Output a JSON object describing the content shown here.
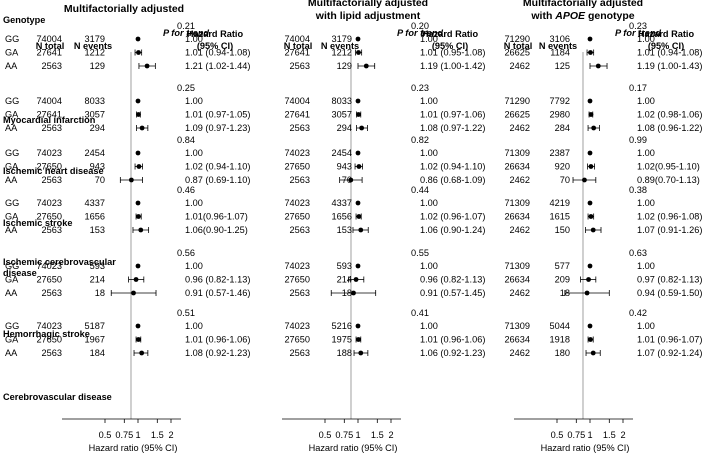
{
  "chart_data": {
    "type": "forest",
    "xlabel": "Hazard ratio (95% CI)",
    "x_ticks": [
      "0.5",
      "0.75",
      "1",
      "1.5",
      "2"
    ],
    "x_scale": "log",
    "xlim": [
      0.5,
      2
    ],
    "row_header": "Genotype",
    "panels": [
      {
        "title": [
          "Multifactorially adjusted"
        ],
        "title_italic_word": "",
        "col_headers": {
          "n_total": "N total",
          "n_events": "N events",
          "p": "P for trend",
          "hr_label": [
            "Hazard Ratio",
            "(95% CI)"
          ]
        },
        "groups": [
          {
            "name": [
              "Myocardial infarction"
            ],
            "p": "0.21",
            "rows": [
              {
                "g": "GG",
                "n": "74004",
                "e": "3179",
                "hr": 1.0,
                "lo": 1.0,
                "hi": 1.0,
                "text": "1.00"
              },
              {
                "g": "GA",
                "n": "27641",
                "e": "1212",
                "hr": 1.01,
                "lo": 0.94,
                "hi": 1.08,
                "text": "1.01 (0.94-1.08)"
              },
              {
                "g": "AA",
                "n": "2563",
                "e": "129",
                "hr": 1.21,
                "lo": 1.02,
                "hi": 1.44,
                "text": "1.21 (1.02-1.44)"
              }
            ]
          },
          {
            "name": [
              "Ischemic heart disease"
            ],
            "p": "0.25",
            "rows": [
              {
                "g": "GG",
                "n": "74004",
                "e": "8033",
                "hr": 1.0,
                "lo": 1.0,
                "hi": 1.0,
                "text": "1.00"
              },
              {
                "g": "GA",
                "n": "27641",
                "e": "3057",
                "hr": 1.01,
                "lo": 0.97,
                "hi": 1.05,
                "text": "1.01 (0.97-1.05)"
              },
              {
                "g": "AA",
                "n": "2563",
                "e": "294",
                "hr": 1.09,
                "lo": 0.97,
                "hi": 1.23,
                "text": "1.09 (0.97-1.23)"
              }
            ]
          },
          {
            "name": [
              "Ischemic stroke"
            ],
            "p": "0.84",
            "rows": [
              {
                "g": "GG",
                "n": "74023",
                "e": "2454",
                "hr": 1.0,
                "lo": 1.0,
                "hi": 1.0,
                "text": "1.00"
              },
              {
                "g": "GA",
                "n": "27650",
                "e": "943",
                "hr": 1.02,
                "lo": 0.94,
                "hi": 1.1,
                "text": "1.02 (0.94-1.10)"
              },
              {
                "g": "AA",
                "n": "2563",
                "e": "70",
                "hr": 0.87,
                "lo": 0.69,
                "hi": 1.1,
                "text": "0.87 (0.69-1.10)"
              }
            ]
          },
          {
            "name": [
              "Ischemic cerebrovascular",
              "disease"
            ],
            "p": "0.46",
            "rows": [
              {
                "g": "GG",
                "n": "74023",
                "e": "4337",
                "hr": 1.0,
                "lo": 1.0,
                "hi": 1.0,
                "text": "1.00"
              },
              {
                "g": "GA",
                "n": "27650",
                "e": "1656",
                "hr": 1.01,
                "lo": 0.96,
                "hi": 1.07,
                "text": "1.01(0.96-1.07)"
              },
              {
                "g": "AA",
                "n": "2563",
                "e": "153",
                "hr": 1.06,
                "lo": 0.9,
                "hi": 1.25,
                "text": "1.06(0.90-1.25)"
              }
            ]
          },
          {
            "name": [
              "Hemorrhagic stroke"
            ],
            "p": "0.56",
            "rows": [
              {
                "g": "GG",
                "n": "74023",
                "e": "593",
                "hr": 1.0,
                "lo": 1.0,
                "hi": 1.0,
                "text": "1.00"
              },
              {
                "g": "GA",
                "n": "27650",
                "e": "214",
                "hr": 0.96,
                "lo": 0.82,
                "hi": 1.13,
                "text": "0.96 (0.82-1.13)"
              },
              {
                "g": "AA",
                "n": "2563",
                "e": "18",
                "hr": 0.91,
                "lo": 0.57,
                "hi": 1.46,
                "text": "0.91 (0.57-1.46)"
              }
            ]
          },
          {
            "name": [
              "Cerebrovascular disease"
            ],
            "p": "0.51",
            "rows": [
              {
                "g": "GG",
                "n": "74023",
                "e": "5187",
                "hr": 1.0,
                "lo": 1.0,
                "hi": 1.0,
                "text": "1.00"
              },
              {
                "g": "GA",
                "n": "27650",
                "e": "1967",
                "hr": 1.01,
                "lo": 0.96,
                "hi": 1.06,
                "text": "1.01 (0.96-1.06)"
              },
              {
                "g": "AA",
                "n": "2563",
                "e": "184",
                "hr": 1.08,
                "lo": 0.92,
                "hi": 1.23,
                "text": "1.08 (0.92-1.23)"
              }
            ]
          }
        ]
      },
      {
        "title": [
          "Multifactorially adjusted",
          "with lipid adjustment"
        ],
        "title_italic_word": "",
        "col_headers": {
          "n_total": "N total",
          "n_events": "N events",
          "p": "P for trend",
          "hr_label": [
            "Hazard Ratio",
            "(95% CI)"
          ]
        },
        "groups": [
          {
            "p": "0.20",
            "rows": [
              {
                "n": "74004",
                "e": "3179",
                "hr": 1.0,
                "lo": 1.0,
                "hi": 1.0,
                "text": "1.00"
              },
              {
                "n": "27641",
                "e": "1212",
                "hr": 1.01,
                "lo": 0.95,
                "hi": 1.08,
                "text": "1.01 (0.95-1.08)"
              },
              {
                "n": "2563",
                "e": "129",
                "hr": 1.19,
                "lo": 1.0,
                "hi": 1.42,
                "text": "1.19 (1.00-1.42)"
              }
            ]
          },
          {
            "p": "0.23",
            "rows": [
              {
                "n": "74004",
                "e": "8033",
                "hr": 1.0,
                "lo": 1.0,
                "hi": 1.0,
                "text": "1.00"
              },
              {
                "n": "27641",
                "e": "3057",
                "hr": 1.01,
                "lo": 0.97,
                "hi": 1.06,
                "text": "1.01 (0.97-1.06)"
              },
              {
                "n": "2563",
                "e": "294",
                "hr": 1.08,
                "lo": 0.97,
                "hi": 1.22,
                "text": "1.08 (0.97-1.22)"
              }
            ]
          },
          {
            "p": "0.82",
            "rows": [
              {
                "n": "74023",
                "e": "2454",
                "hr": 1.0,
                "lo": 1.0,
                "hi": 1.0,
                "text": "1.00"
              },
              {
                "n": "27650",
                "e": "943",
                "hr": 1.02,
                "lo": 0.94,
                "hi": 1.1,
                "text": "1.02 (0.94-1.10)"
              },
              {
                "n": "2563",
                "e": "70",
                "hr": 0.86,
                "lo": 0.68,
                "hi": 1.09,
                "text": "0.86 (0.68-1.09)"
              }
            ]
          },
          {
            "p": "0.44",
            "rows": [
              {
                "n": "74023",
                "e": "4337",
                "hr": 1.0,
                "lo": 1.0,
                "hi": 1.0,
                "text": "1.00"
              },
              {
                "n": "27650",
                "e": "1656",
                "hr": 1.02,
                "lo": 0.96,
                "hi": 1.07,
                "text": "1.02 (0.96-1.07)"
              },
              {
                "n": "2563",
                "e": "153",
                "hr": 1.06,
                "lo": 0.9,
                "hi": 1.24,
                "text": "1.06 (0.90-1.24)"
              }
            ]
          },
          {
            "p": "0.55",
            "rows": [
              {
                "n": "74023",
                "e": "593",
                "hr": 1.0,
                "lo": 1.0,
                "hi": 1.0,
                "text": "1.00"
              },
              {
                "n": "27650",
                "e": "214",
                "hr": 0.96,
                "lo": 0.82,
                "hi": 1.13,
                "text": "0.96 (0.82-1.13)"
              },
              {
                "n": "2563",
                "e": "18",
                "hr": 0.91,
                "lo": 0.57,
                "hi": 1.45,
                "text": "0.91 (0.57-1.45)"
              }
            ]
          },
          {
            "p": "0.41",
            "rows": [
              {
                "n": "74023",
                "e": "5216",
                "hr": 1.0,
                "lo": 1.0,
                "hi": 1.0,
                "text": "1.00"
              },
              {
                "n": "27650",
                "e": "1975",
                "hr": 1.01,
                "lo": 0.96,
                "hi": 1.06,
                "text": "1.01 (0.96-1.06)"
              },
              {
                "n": "2563",
                "e": "188",
                "hr": 1.06,
                "lo": 0.92,
                "hi": 1.23,
                "text": "1.06 (0.92-1.23)"
              }
            ]
          }
        ]
      },
      {
        "title": [
          "Multifactorially adjusted",
          "with  genotype"
        ],
        "title_italic_word": "APOE",
        "col_headers": {
          "n_total": "N total",
          "n_events": "N events",
          "p": "P for trend",
          "hr_label": [
            "Hazard Ratio",
            "(95% CI)"
          ]
        },
        "groups": [
          {
            "p": "0.23",
            "rows": [
              {
                "n": "71290",
                "e": "3106",
                "hr": 1.0,
                "lo": 1.0,
                "hi": 1.0,
                "text": "1.00"
              },
              {
                "n": "26625",
                "e": "1184",
                "hr": 1.01,
                "lo": 0.94,
                "hi": 1.08,
                "text": "1.01 (0.94-1.08)"
              },
              {
                "n": "2462",
                "e": "125",
                "hr": 1.19,
                "lo": 1.0,
                "hi": 1.43,
                "text": "1.19 (1.00-1.43)"
              }
            ]
          },
          {
            "p": "0.17",
            "rows": [
              {
                "n": "71290",
                "e": "7792",
                "hr": 1.0,
                "lo": 1.0,
                "hi": 1.0,
                "text": "1.00"
              },
              {
                "n": "26625",
                "e": "2980",
                "hr": 1.02,
                "lo": 0.98,
                "hi": 1.06,
                "text": "1.02 (0.98-1.06)"
              },
              {
                "n": "2462",
                "e": "284",
                "hr": 1.08,
                "lo": 0.96,
                "hi": 1.22,
                "text": "1.08 (0.96-1.22)"
              }
            ]
          },
          {
            "p": "0.99",
            "rows": [
              {
                "n": "71309",
                "e": "2387",
                "hr": 1.0,
                "lo": 1.0,
                "hi": 1.0,
                "text": "1.00"
              },
              {
                "n": "26634",
                "e": "920",
                "hr": 1.02,
                "lo": 0.95,
                "hi": 1.1,
                "text": "1.02(0.95-1.10)"
              },
              {
                "n": "2462",
                "e": "70",
                "hr": 0.89,
                "lo": 0.7,
                "hi": 1.13,
                "text": "0.89(0.70-1.13)"
              }
            ]
          },
          {
            "p": "0.38",
            "rows": [
              {
                "n": "71309",
                "e": "4219",
                "hr": 1.0,
                "lo": 1.0,
                "hi": 1.0,
                "text": "1.00"
              },
              {
                "n": "26634",
                "e": "1615",
                "hr": 1.02,
                "lo": 0.96,
                "hi": 1.08,
                "text": "1.02 (0.96-1.08)"
              },
              {
                "n": "2462",
                "e": "150",
                "hr": 1.07,
                "lo": 0.91,
                "hi": 1.26,
                "text": "1.07 (0.91-1.26)"
              }
            ]
          },
          {
            "p": "0.63",
            "rows": [
              {
                "n": "71309",
                "e": "577",
                "hr": 1.0,
                "lo": 1.0,
                "hi": 1.0,
                "text": "1.00"
              },
              {
                "n": "26634",
                "e": "209",
                "hr": 0.97,
                "lo": 0.82,
                "hi": 1.13,
                "text": "0.97 (0.82-1.13)"
              },
              {
                "n": "2462",
                "e": "18",
                "hr": 0.94,
                "lo": 0.59,
                "hi": 1.5,
                "text": "0.94 (0.59-1.50)"
              }
            ]
          },
          {
            "p": "0.42",
            "rows": [
              {
                "n": "71309",
                "e": "5044",
                "hr": 1.0,
                "lo": 1.0,
                "hi": 1.0,
                "text": "1.00"
              },
              {
                "n": "26634",
                "e": "1918",
                "hr": 1.01,
                "lo": 0.96,
                "hi": 1.07,
                "text": "1.01 (0.96-1.07)"
              },
              {
                "n": "2462",
                "e": "180",
                "hr": 1.07,
                "lo": 0.92,
                "hi": 1.24,
                "text": "1.07 (0.92-1.24)"
              }
            ]
          }
        ]
      }
    ]
  }
}
